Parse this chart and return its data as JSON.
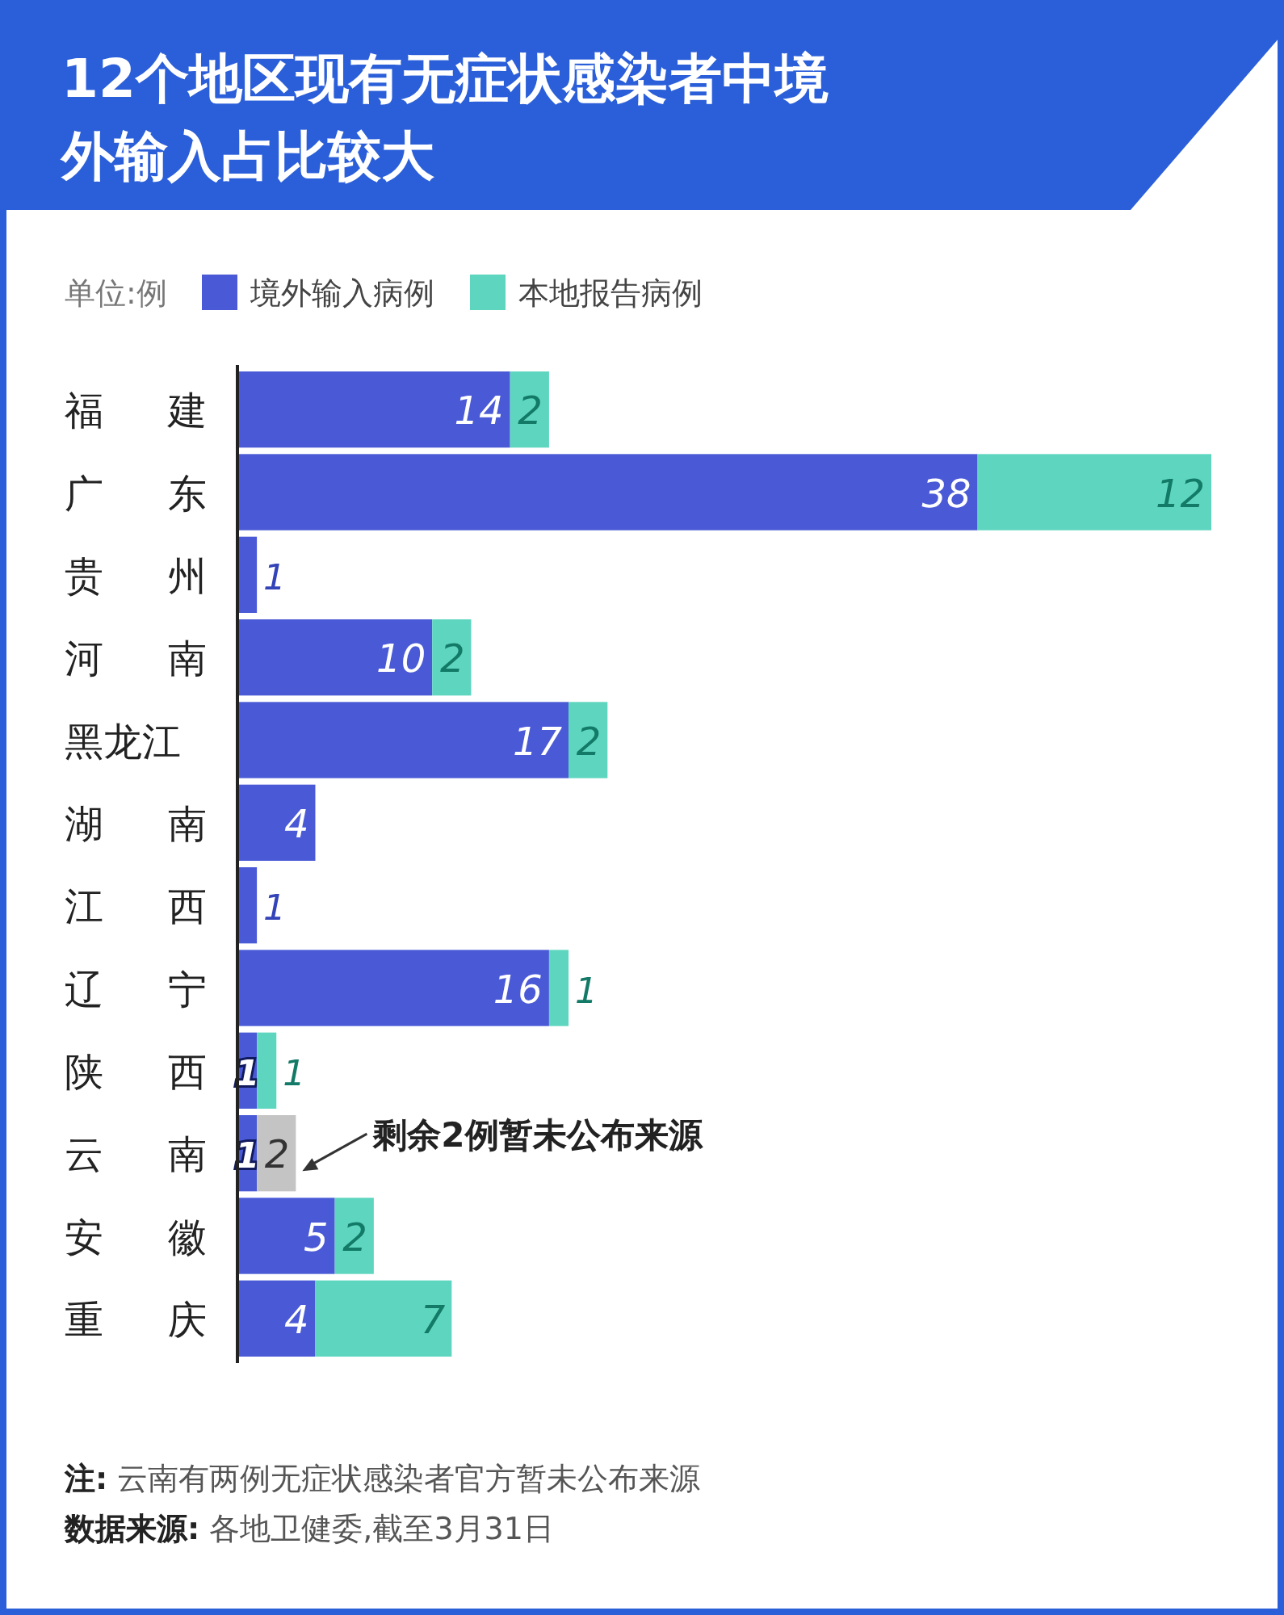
{
  "chart_data": {
    "type": "bar",
    "orientation": "horizontal",
    "stacked": true,
    "data_labels": true,
    "title": "12个地区现有无症状感染者中境外输入占比较大",
    "legend_title": "单位:例",
    "legend": "top left",
    "categories": [
      "福建",
      "广东",
      "贵州",
      "河南",
      "黑龙江",
      "湖南",
      "江西",
      "辽宁",
      "陕西",
      "云南",
      "安徽",
      "重庆"
    ],
    "series": [
      {
        "name": "境外输入病例",
        "color": "#4a5ad6",
        "values": [
          14,
          38,
          1,
          10,
          17,
          4,
          1,
          16,
          1,
          1,
          5,
          4
        ]
      },
      {
        "name": "本地报告病例",
        "color": "#5dd5bf",
        "values": [
          2,
          12,
          null,
          2,
          2,
          null,
          null,
          1,
          1,
          null,
          2,
          7
        ]
      },
      {
        "color": "#c4c4c4",
        "values": [
          null,
          null,
          null,
          null,
          null,
          null,
          null,
          null,
          null,
          2,
          null,
          null
        ]
      }
    ],
    "annotations": [
      {
        "text": "剩余2例暂未公布来源",
        "x": 3,
        "y": "云南"
      },
      "注: 云南有两例无症状感染者官方暂未公布来源",
      "数据来源: 各地卫健委,截至3月31日"
    ]
  }
}
